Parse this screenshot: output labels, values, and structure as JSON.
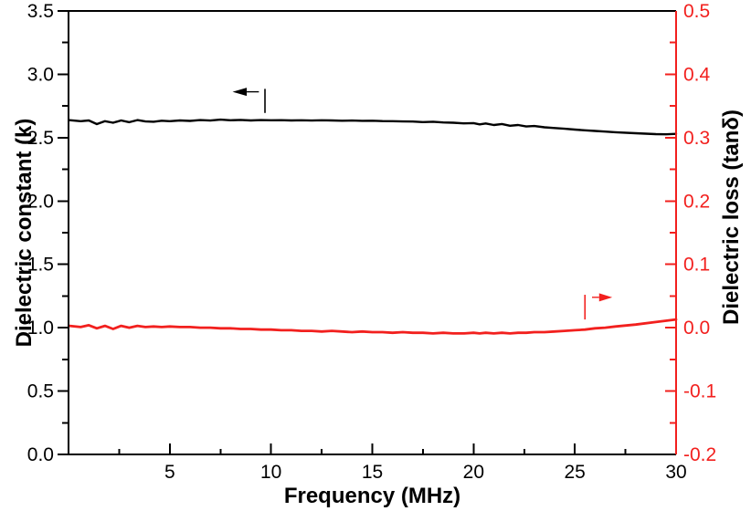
{
  "colors": {
    "background": "#ffffff",
    "left_axis": "#000000",
    "right_axis": "#f2201e",
    "frame": "#000000"
  },
  "chart_data": {
    "type": "line",
    "title": "",
    "xlabel": "Frequency (MHz)",
    "ylabel_left": "Dielectric constant (k)",
    "ylabel_right": "Dielectric loss (tanδ)",
    "x_range": [
      0,
      30
    ],
    "y_left_range": [
      0.0,
      3.5
    ],
    "y_right_range": [
      -0.2,
      0.5
    ],
    "grid": false,
    "legend": "none",
    "ticks": {
      "x": {
        "values": [
          5,
          10,
          15,
          20,
          25,
          30
        ],
        "labels": [
          "5",
          "10",
          "15",
          "20",
          "25",
          "30"
        ]
      },
      "x_minor": [
        2.5,
        7.5,
        12.5,
        17.5,
        22.5,
        27.5
      ],
      "y_left": {
        "values": [
          0.0,
          0.5,
          1.0,
          1.5,
          2.0,
          2.5,
          3.0,
          3.5
        ],
        "labels": [
          "0.0",
          "0.5",
          "1.0",
          "1.5",
          "2.0",
          "2.5",
          "3.0",
          "3.5"
        ]
      },
      "y_left_minor": [
        0.25,
        0.75,
        1.25,
        1.75,
        2.25,
        2.75,
        3.25
      ],
      "y_right": {
        "values": [
          -0.2,
          -0.1,
          0.0,
          0.1,
          0.2,
          0.3,
          0.4,
          0.5
        ],
        "labels": [
          "-0.2",
          "-0.1",
          "0.0",
          "0.1",
          "0.2",
          "0.3",
          "0.4",
          "0.5"
        ]
      },
      "y_right_minor": [
        -0.15,
        -0.05,
        0.05,
        0.15,
        0.25,
        0.35,
        0.45
      ]
    },
    "series": [
      {
        "id": "dielectric-constant",
        "name": "Dielectric constant (k)",
        "axis": "left",
        "color": "#000000",
        "width": 2.4,
        "x": [
          0.05,
          0.6,
          1.0,
          1.4,
          1.8,
          2.2,
          2.6,
          3.0,
          3.4,
          3.8,
          4.2,
          4.6,
          5.0,
          5.5,
          6.0,
          6.5,
          7.0,
          7.5,
          8.0,
          8.5,
          9.0,
          9.5,
          10.0,
          10.5,
          11.0,
          11.5,
          12.0,
          12.5,
          13.0,
          13.5,
          14.0,
          14.5,
          15.0,
          15.5,
          16.0,
          16.5,
          17.0,
          17.5,
          18.0,
          18.5,
          19.0,
          19.5,
          20.0,
          20.3,
          20.6,
          21.0,
          21.4,
          21.8,
          22.2,
          22.6,
          23.0,
          23.5,
          24.0,
          24.5,
          25.0,
          25.5,
          26.0,
          26.5,
          27.0,
          28.0,
          29.0,
          29.5,
          30.0
        ],
        "y": [
          2.638,
          2.63,
          2.636,
          2.607,
          2.63,
          2.618,
          2.636,
          2.622,
          2.639,
          2.628,
          2.626,
          2.634,
          2.63,
          2.636,
          2.632,
          2.639,
          2.635,
          2.642,
          2.637,
          2.64,
          2.636,
          2.639,
          2.637,
          2.638,
          2.636,
          2.637,
          2.635,
          2.637,
          2.636,
          2.634,
          2.635,
          2.633,
          2.634,
          2.631,
          2.63,
          2.628,
          2.627,
          2.623,
          2.626,
          2.62,
          2.618,
          2.613,
          2.615,
          2.605,
          2.612,
          2.6,
          2.608,
          2.594,
          2.6,
          2.588,
          2.592,
          2.582,
          2.576,
          2.57,
          2.564,
          2.558,
          2.553,
          2.548,
          2.543,
          2.535,
          2.528,
          2.526,
          2.53
        ]
      },
      {
        "id": "dielectric-loss",
        "name": "Dielectric loss (tanδ)",
        "axis": "right",
        "color": "#f2201e",
        "width": 2.8,
        "x": [
          0.05,
          0.6,
          1.0,
          1.4,
          1.8,
          2.2,
          2.6,
          3.0,
          3.4,
          3.8,
          4.2,
          4.6,
          5.0,
          5.5,
          6.0,
          6.5,
          7.0,
          7.5,
          8.0,
          8.5,
          9.0,
          9.5,
          10.0,
          10.5,
          11.0,
          11.5,
          12.0,
          12.5,
          13.0,
          13.5,
          14.0,
          14.5,
          15.0,
          15.5,
          16.0,
          16.5,
          17.0,
          17.5,
          18.0,
          18.5,
          19.0,
          19.5,
          20.0,
          20.3,
          20.6,
          21.0,
          21.4,
          21.8,
          22.2,
          22.6,
          23.0,
          23.5,
          24.0,
          24.5,
          25.0,
          25.5,
          26.0,
          26.5,
          27.0,
          28.0,
          29.0,
          29.5,
          30.0
        ],
        "y": [
          0.003,
          0.001,
          0.004,
          -0.001,
          0.003,
          -0.002,
          0.003,
          0.0,
          0.003,
          0.001,
          0.002,
          0.001,
          0.002,
          0.001,
          0.001,
          0.0,
          0.0,
          -0.001,
          -0.001,
          -0.002,
          -0.002,
          -0.003,
          -0.003,
          -0.004,
          -0.004,
          -0.005,
          -0.005,
          -0.006,
          -0.005,
          -0.006,
          -0.007,
          -0.006,
          -0.007,
          -0.007,
          -0.008,
          -0.007,
          -0.008,
          -0.008,
          -0.009,
          -0.008,
          -0.009,
          -0.009,
          -0.008,
          -0.009,
          -0.008,
          -0.009,
          -0.008,
          -0.009,
          -0.008,
          -0.008,
          -0.007,
          -0.007,
          -0.006,
          -0.005,
          -0.004,
          -0.003,
          -0.001,
          0.0,
          0.002,
          0.005,
          0.009,
          0.011,
          0.013
        ]
      }
    ],
    "annotations": [
      {
        "id": "left-axis-pointer",
        "series": "dielectric-constant",
        "axis": "left",
        "color": "#000000",
        "bar": {
          "x": 9.7,
          "y_from": 2.695,
          "y_to": 2.885
        },
        "arrow": {
          "direction": "left",
          "y": 2.862,
          "tip_x": 8.1,
          "base_x": 8.8,
          "tail_x": 9.4
        }
      },
      {
        "id": "right-axis-pointer",
        "series": "dielectric-loss",
        "axis": "right",
        "color": "#f2201e",
        "bar": {
          "x": 25.5,
          "y_from": 0.013,
          "y_to": 0.052
        },
        "arrow": {
          "direction": "right",
          "y": 0.048,
          "tip_x": 26.85,
          "base_x": 26.2,
          "tail_x": 25.85
        }
      }
    ]
  }
}
